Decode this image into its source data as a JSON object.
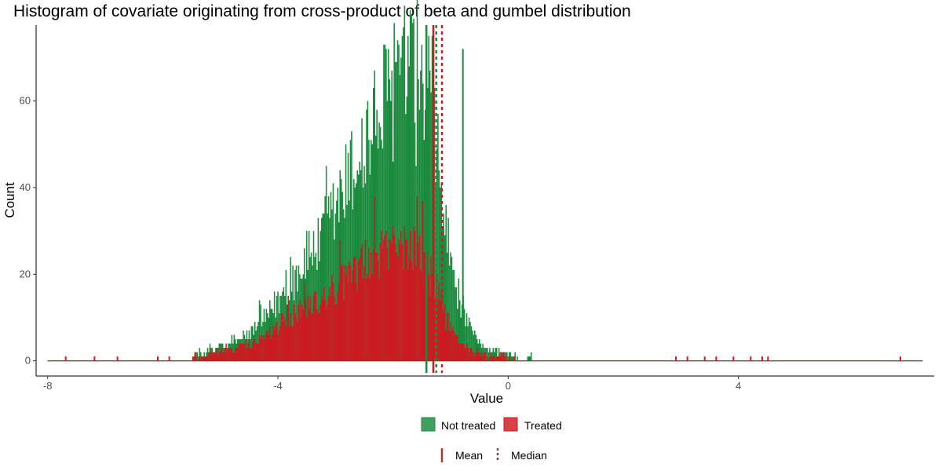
{
  "chart_data": {
    "type": "bar",
    "title": "Histogram of covariate originating from cross-product of beta and gumbel distribution",
    "xlabel": "Value",
    "ylabel": "Count",
    "xlim": [
      -8.2,
      7.4
    ],
    "ylim": [
      -3.5,
      77.5
    ],
    "xticks": [
      -8,
      -4,
      0,
      4
    ],
    "xtick_labels": [
      "-8",
      "-4",
      "0",
      "4"
    ],
    "yticks": [
      0,
      20,
      40,
      60
    ],
    "ytick_labels": [
      "0",
      "20",
      "40",
      "60"
    ],
    "bin_width": 0.02,
    "grid": false,
    "series": [
      {
        "name": "Not treated",
        "color": "#1a8a3d",
        "estimate": "approximate heights sampled every 0.1 from x = -5.5 (continuous histogram in the original; values are read off the axis)",
        "x_start": -5.5,
        "x_step": 0.1,
        "values": [
          1,
          2,
          1,
          3,
          2,
          4,
          3,
          5,
          4,
          6,
          6,
          8,
          9,
          10,
          12,
          14,
          16,
          18,
          20,
          22,
          24,
          27,
          26,
          30,
          32,
          35,
          38,
          41,
          44,
          47,
          50,
          52,
          55,
          58,
          60,
          62,
          64,
          66,
          64,
          62,
          60,
          56,
          50,
          42,
          32,
          22,
          16,
          12,
          8,
          6,
          4,
          3,
          2,
          2,
          1,
          1,
          1,
          0,
          0,
          1
        ],
        "peak": 72,
        "peak_x": -0.8
      },
      {
        "name": "Treated",
        "color": "#cc1a20",
        "estimate": "approximate heights sampled every 0.1 from x = -5.5 (continuous histogram in the original; values are read off the axis)",
        "x_start": -5.5,
        "x_step": 0.1,
        "values": [
          1,
          1,
          1,
          2,
          2,
          2,
          3,
          3,
          3,
          4,
          4,
          5,
          5,
          6,
          7,
          8,
          9,
          10,
          11,
          12,
          13,
          14,
          14,
          15,
          16,
          17,
          18,
          19,
          20,
          21,
          22,
          23,
          24,
          25,
          26,
          27,
          27,
          27,
          26,
          25,
          23,
          21,
          18,
          14,
          10,
          7,
          5,
          4,
          3,
          2,
          2,
          1,
          1,
          1,
          1,
          1,
          0,
          0,
          0,
          0
        ],
        "outliers_x": [
          -7.7,
          -7.2,
          -6.8,
          -6.1,
          -5.9,
          2.9,
          3.1,
          3.4,
          3.6,
          3.9,
          4.2,
          4.4,
          4.5,
          6.8
        ],
        "outliers_count": 1,
        "peak": 37,
        "peak_x": -1.5
      }
    ],
    "vlines": [
      {
        "series": "Not treated",
        "stat": "Mean",
        "x": -1.42,
        "color": "#1a8a3d",
        "linestyle": "solid"
      },
      {
        "series": "Not treated",
        "stat": "Median",
        "x": -1.25,
        "color": "#1a8a3d",
        "linestyle": "dotted"
      },
      {
        "series": "Treated",
        "stat": "Mean",
        "x": -1.3,
        "color": "#cc1a20",
        "linestyle": "solid"
      },
      {
        "series": "Treated",
        "stat": "Median",
        "x": -1.15,
        "color": "#cc1a20",
        "linestyle": "dotted"
      }
    ],
    "legend": {
      "placement": "bottom",
      "fill_entries": [
        {
          "label": "Not treated",
          "color": "#1a8a3d"
        },
        {
          "label": "Treated",
          "color": "#cc1a20"
        }
      ],
      "line_entries": [
        {
          "label": "Mean",
          "linestyle": "solid",
          "color": "#a33a2a"
        },
        {
          "label": "Median",
          "linestyle": "dotted",
          "color": "#a33a2a"
        }
      ]
    }
  }
}
